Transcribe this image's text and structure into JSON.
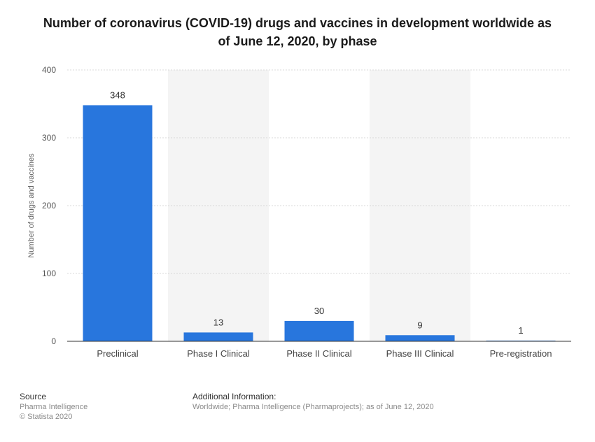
{
  "chart_data": {
    "type": "bar",
    "title_lines": [
      "Number of coronavirus (COVID-19) drugs and vaccines in development worldwide as",
      "of June 12, 2020, by phase"
    ],
    "categories": [
      "Preclinical",
      "Phase I Clinical",
      "Phase II Clinical",
      "Phase III Clinical",
      "Pre-registration"
    ],
    "values": [
      348,
      13,
      30,
      9,
      1
    ],
    "xlabel": "",
    "ylabel": "Number of drugs and vaccines",
    "ylim": [
      0,
      400
    ],
    "yticks": [
      0,
      100,
      200,
      300,
      400
    ],
    "grid": true,
    "bar_color": "#2876dd",
    "band_color": "#f4f4f4"
  },
  "footer": {
    "source_heading": "Source",
    "source_lines": [
      "Pharma Intelligence",
      "© Statista 2020"
    ],
    "info_heading": "Additional Information:",
    "info_text": "Worldwide; Pharma Intelligence (Pharmaprojects); as of June 12, 2020"
  }
}
